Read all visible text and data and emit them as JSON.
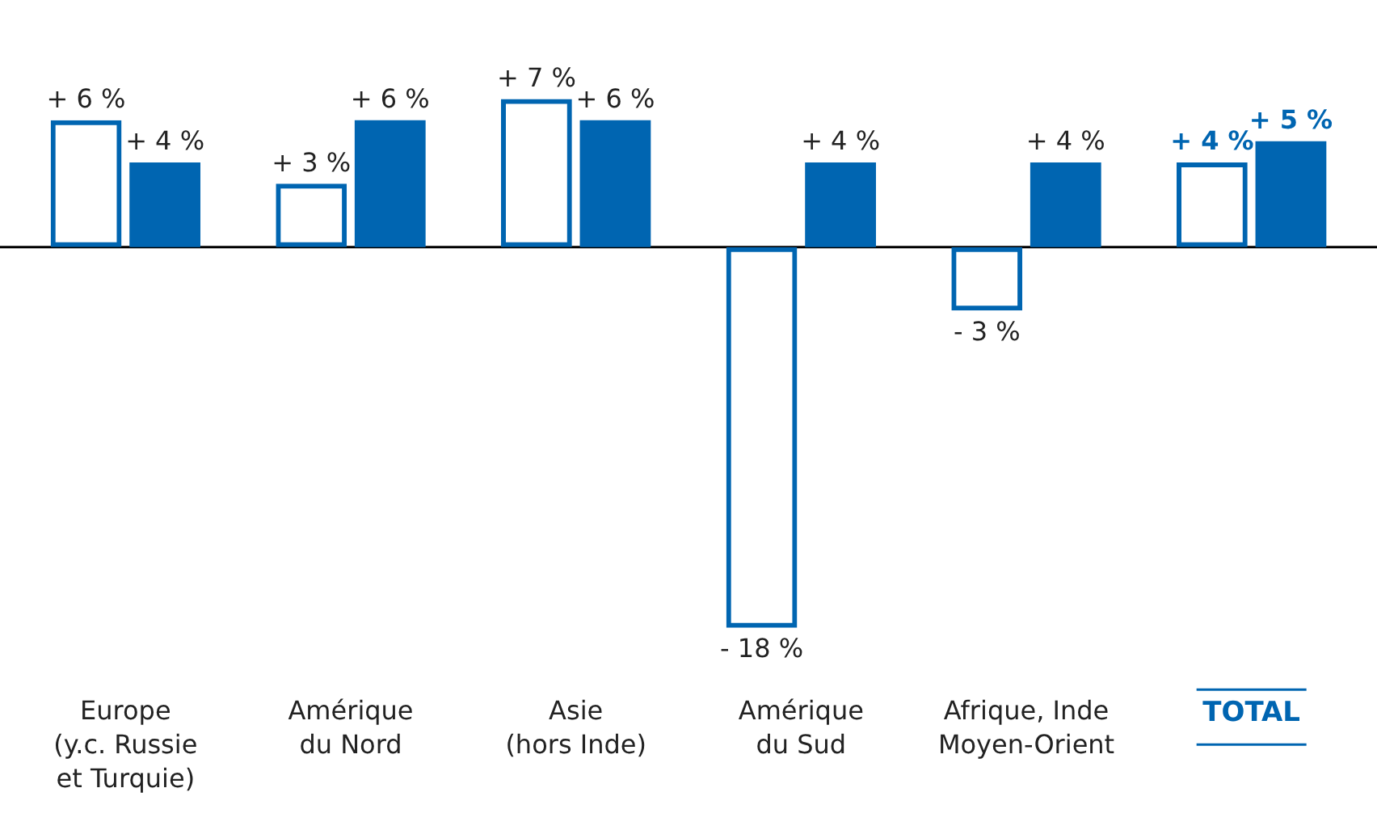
{
  "chart_data": {
    "type": "bar",
    "categories": [
      "Europe\n(y.c. Russie\net Turquie)",
      "Amérique\ndu Nord",
      "Asie\n(hors Inde)",
      "Amérique\ndu Sud",
      "Afrique, Inde\nMoyen-Orient",
      "TOTAL"
    ],
    "series": [
      {
        "color": "#0065b1",
        "values": [
          6,
          3,
          7,
          -18,
          -3,
          4
        ],
        "value_labels": [
          "+ 6 %",
          "+ 3 %",
          "+ 7 %",
          "- 18 %",
          "- 3 %",
          "+ 4 %"
        ]
      },
      {
        "color": "#0065b1",
        "values": [
          4,
          6,
          6,
          4,
          4,
          5
        ],
        "value_labels": [
          "+ 4 %",
          "+ 6 %",
          "+ 6 %",
          "+ 4 %",
          "+ 4 %",
          "+ 5 %"
        ]
      }
    ],
    "grid": false,
    "legend": false
  }
}
